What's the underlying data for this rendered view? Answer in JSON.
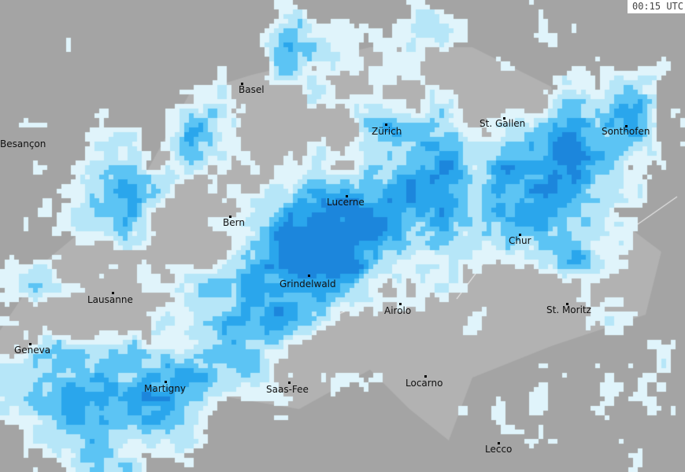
{
  "timestamp": "00:15 UTC",
  "colors": {
    "background": "#a4a4a4",
    "region": "#b2b2b2",
    "precip_light": "#e0f4fb",
    "precip_low": "#b6e6f8",
    "precip_mid": "#5cc4f4",
    "precip_high": "#2aa6ec",
    "precip_very_high": "#1c86dc"
  },
  "cities": [
    {
      "name": "Basel"
    },
    {
      "name": "Besançon"
    },
    {
      "name": "Zürich"
    },
    {
      "name": "St. Gallen"
    },
    {
      "name": "Sonthofen"
    },
    {
      "name": "Lucerne"
    },
    {
      "name": "Bern"
    },
    {
      "name": "Chur"
    },
    {
      "name": "Grindelwald"
    },
    {
      "name": "Lausanne"
    },
    {
      "name": "Airolo"
    },
    {
      "name": "St. Moritz"
    },
    {
      "name": "Geneva"
    },
    {
      "name": "Martigny"
    },
    {
      "name": "Saas-Fee"
    },
    {
      "name": "Locarno"
    },
    {
      "name": "Lecco"
    }
  ]
}
